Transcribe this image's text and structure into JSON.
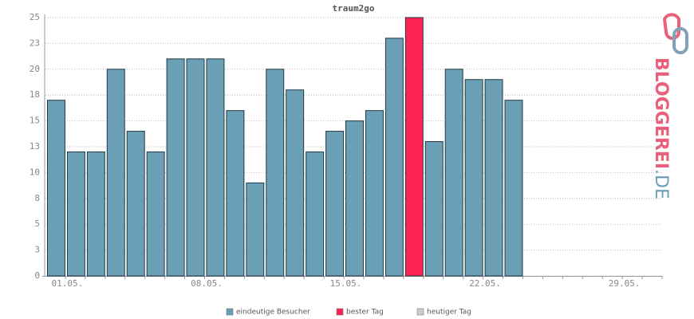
{
  "chart_data": {
    "type": "bar",
    "title": "traum2go",
    "categories": [
      "01.05.",
      null,
      null,
      null,
      null,
      null,
      null,
      "08.05.",
      null,
      null,
      null,
      null,
      null,
      null,
      "15.05.",
      null,
      null,
      null,
      null,
      null,
      null,
      "22.05.",
      null,
      null,
      null,
      null,
      null,
      null,
      "29.05.",
      null,
      null
    ],
    "series": [
      {
        "name": "eindeutige Besucher",
        "color": "#6a9fb5",
        "values": [
          17,
          12,
          12,
          20,
          14,
          12,
          21,
          21,
          21,
          16,
          9,
          20,
          18,
          12,
          14,
          15,
          16,
          23,
          null,
          13,
          20,
          19,
          19,
          17,
          null,
          null,
          null,
          null,
          null,
          null,
          null
        ]
      },
      {
        "name": "bester Tag",
        "color": "#ff2255",
        "values": [
          null,
          null,
          null,
          null,
          null,
          null,
          null,
          null,
          null,
          null,
          null,
          null,
          null,
          null,
          null,
          null,
          null,
          null,
          25,
          null,
          null,
          null,
          null,
          null,
          null,
          null,
          null,
          null,
          null,
          null,
          null
        ]
      },
      {
        "name": "heutiger Tag",
        "color": "#cccccc",
        "values": [
          null,
          null,
          null,
          null,
          null,
          null,
          null,
          null,
          null,
          null,
          null,
          null,
          null,
          null,
          null,
          null,
          null,
          null,
          null,
          null,
          null,
          null,
          null,
          null,
          null,
          null,
          null,
          null,
          null,
          null,
          null
        ]
      }
    ],
    "ylim": [
      0,
      25
    ],
    "yticks": [
      0,
      {
        "value": 2.5,
        "label": "3"
      },
      5,
      {
        "value": 7.5,
        "label": "8"
      },
      10,
      {
        "value": 12.5,
        "label": "13"
      },
      15,
      {
        "value": 17.5,
        "label": "18"
      },
      20,
      {
        "value": 22.5,
        "label": "23"
      },
      25
    ],
    "grid": true
  },
  "logo": {
    "name": "BLOGGEREI",
    "suffix": ".DE"
  }
}
